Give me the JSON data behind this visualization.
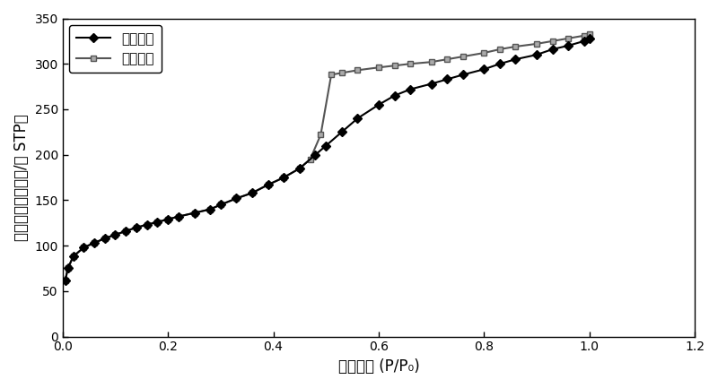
{
  "adsorption_x": [
    0.005,
    0.01,
    0.02,
    0.04,
    0.06,
    0.08,
    0.1,
    0.12,
    0.14,
    0.16,
    0.18,
    0.2,
    0.22,
    0.25,
    0.28,
    0.3,
    0.33,
    0.36,
    0.39,
    0.42,
    0.45,
    0.48,
    0.5,
    0.53,
    0.56,
    0.6,
    0.63,
    0.66,
    0.7,
    0.73,
    0.76,
    0.8,
    0.83,
    0.86,
    0.9,
    0.93,
    0.96,
    0.99,
    1.0
  ],
  "adsorption_y": [
    62,
    75,
    88,
    98,
    103,
    108,
    112,
    116,
    120,
    123,
    126,
    129,
    132,
    136,
    140,
    145,
    152,
    158,
    167,
    175,
    185,
    200,
    210,
    225,
    240,
    255,
    265,
    272,
    278,
    283,
    288,
    294,
    300,
    305,
    310,
    316,
    320,
    325,
    328
  ],
  "desorption_x": [
    0.005,
    0.01,
    0.02,
    0.04,
    0.06,
    0.08,
    0.1,
    0.12,
    0.14,
    0.16,
    0.18,
    0.2,
    0.22,
    0.25,
    0.28,
    0.3,
    0.33,
    0.36,
    0.39,
    0.42,
    0.45,
    0.47,
    0.49,
    0.51,
    0.53,
    0.56,
    0.6,
    0.63,
    0.66,
    0.7,
    0.73,
    0.76,
    0.8,
    0.83,
    0.86,
    0.9,
    0.93,
    0.96,
    0.99,
    1.0
  ],
  "desorption_y": [
    62,
    75,
    88,
    98,
    103,
    108,
    112,
    116,
    120,
    123,
    126,
    129,
    132,
    136,
    140,
    145,
    152,
    158,
    167,
    175,
    185,
    195,
    222,
    288,
    290,
    293,
    296,
    298,
    300,
    302,
    305,
    308,
    312,
    316,
    319,
    322,
    325,
    328,
    331,
    333
  ],
  "xlabel": "相对分压 (P/P₀)",
  "ylabel": "吸附量（立方压米/克 STP）",
  "legend_adsorption": "吸附曲线",
  "legend_desorption": "脱附曲线",
  "xlim": [
    0,
    1.2
  ],
  "ylim": [
    0,
    350
  ],
  "xticks": [
    0.0,
    0.2,
    0.4,
    0.6,
    0.8,
    1.0,
    1.2
  ],
  "yticks": [
    0,
    50,
    100,
    150,
    200,
    250,
    300,
    350
  ],
  "line_color": "#000000",
  "desorption_color": "#555555",
  "markersize_ads": 5,
  "markersize_des": 5,
  "linewidth": 1.5,
  "bg_color": "#ffffff"
}
